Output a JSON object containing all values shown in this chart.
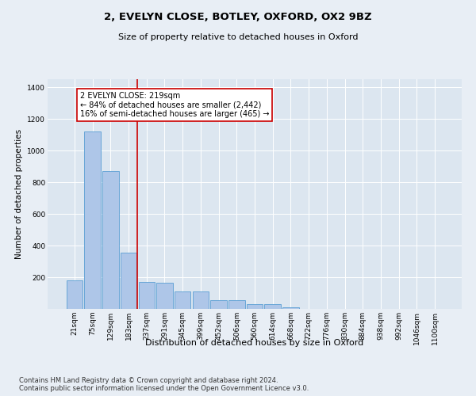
{
  "title": "2, EVELYN CLOSE, BOTLEY, OXFORD, OX2 9BZ",
  "subtitle": "Size of property relative to detached houses in Oxford",
  "xlabel": "Distribution of detached houses by size in Oxford",
  "ylabel": "Number of detached properties",
  "categories": [
    "21sqm",
    "75sqm",
    "129sqm",
    "183sqm",
    "237sqm",
    "291sqm",
    "345sqm",
    "399sqm",
    "452sqm",
    "506sqm",
    "560sqm",
    "614sqm",
    "668sqm",
    "722sqm",
    "776sqm",
    "830sqm",
    "884sqm",
    "938sqm",
    "992sqm",
    "1046sqm",
    "1100sqm"
  ],
  "values": [
    180,
    1120,
    870,
    355,
    170,
    165,
    110,
    110,
    55,
    55,
    28,
    28,
    10,
    0,
    0,
    0,
    0,
    0,
    0,
    0,
    0
  ],
  "bar_color": "#aec6e8",
  "bar_edge_color": "#5a9fd4",
  "vline_color": "#cc0000",
  "annotation_text": "2 EVELYN CLOSE: 219sqm\n← 84% of detached houses are smaller (2,442)\n16% of semi-detached houses are larger (465) →",
  "annotation_box_color": "#ffffff",
  "annotation_box_edge": "#cc0000",
  "footnote": "Contains HM Land Registry data © Crown copyright and database right 2024.\nContains public sector information licensed under the Open Government Licence v3.0.",
  "ylim": [
    0,
    1450
  ],
  "yticks": [
    0,
    200,
    400,
    600,
    800,
    1000,
    1200,
    1400
  ],
  "bg_color": "#e8eef5",
  "plot_bg_color": "#dce6f0",
  "title_fontsize": 9.5,
  "subtitle_fontsize": 8,
  "xlabel_fontsize": 8,
  "ylabel_fontsize": 7.5,
  "tick_fontsize": 6.5,
  "annot_fontsize": 7,
  "footnote_fontsize": 6
}
